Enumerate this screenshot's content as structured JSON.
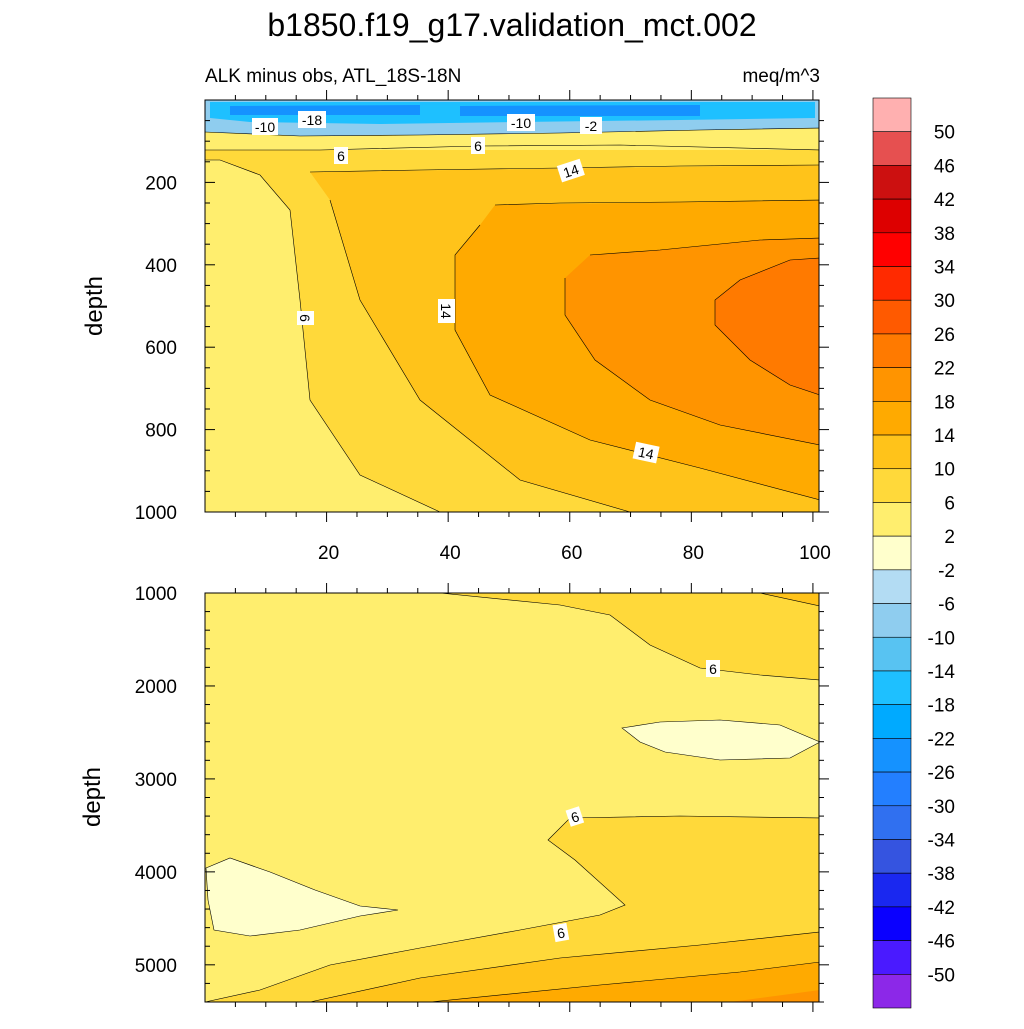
{
  "chart_data": {
    "type": "contour",
    "title": "b1850.f19_g17.validation_mct.002",
    "subtitle_left": "ALK minus obs, ATL_18S-18N",
    "subtitle_right": "meq/m^3",
    "panels": [
      {
        "name": "upper",
        "ylabel": "depth",
        "xlim": [
          0,
          101
        ],
        "ylim": [
          1000,
          0
        ],
        "xticks": [
          20,
          40,
          60,
          80,
          100
        ],
        "yticks": [
          200,
          400,
          600,
          800,
          1000
        ],
        "contour_labels": [
          "-10",
          "-18",
          "-10",
          "-2",
          "6",
          "6",
          "14",
          "6",
          "14",
          "14"
        ],
        "regions": [
          {
            "level": "-10 to -18",
            "description": "thin negative layer at surface, depth 0-50"
          },
          {
            "level": "2 to 6",
            "description": "western portion, x < 20"
          },
          {
            "level": "6 to 10",
            "description": "band x 20-35"
          },
          {
            "level": "10 to 14",
            "description": "band x 30-60"
          },
          {
            "level": "14 to 18",
            "description": "central region"
          },
          {
            "level": "18 to 22",
            "description": "eastern core, depth 350-850"
          },
          {
            "level": "22 to 26",
            "description": "maximum core near x 90, depth 500"
          }
        ]
      },
      {
        "name": "lower",
        "ylabel": "depth",
        "xlim": [
          0,
          101
        ],
        "ylim": [
          5400,
          1000
        ],
        "yticks": [
          1000,
          2000,
          3000,
          4000,
          5000
        ],
        "contour_labels": [
          "6",
          "6",
          "6"
        ],
        "regions": [
          {
            "level": "2 to 6",
            "description": "most of the domain"
          },
          {
            "level": "-2 to 2",
            "description": "two small pockets near depth 2500 east and 4200 west"
          },
          {
            "level": "6 to 10",
            "description": "east side 1000-2000 and 3400-4500"
          },
          {
            "level": "10 to 18",
            "description": "deep east near bottom"
          }
        ]
      }
    ],
    "colorbar": {
      "labels": [
        "50",
        "46",
        "42",
        "38",
        "34",
        "30",
        "26",
        "22",
        "18",
        "14",
        "10",
        "6",
        "2",
        "-2",
        "-6",
        "-10",
        "-14",
        "-18",
        "-22",
        "-26",
        "-30",
        "-34",
        "-38",
        "-42",
        "-46",
        "-50"
      ],
      "colors": [
        "#FFB0B0",
        "#E65050",
        "#CC1010",
        "#DD0000",
        "#FF0000",
        "#FF2A00",
        "#FF5A00",
        "#FF7A00",
        "#FF9400",
        "#FFAA00",
        "#FFC31A",
        "#FFD93A",
        "#FFEE6E",
        "#FFFFCC",
        "#B3DCF3",
        "#8FCDEF",
        "#58C3F2",
        "#1EC0FF",
        "#00AAFF",
        "#1592FF",
        "#237FFF",
        "#3070F0",
        "#3554E0",
        "#1A28F0",
        "#0A00FF",
        "#4A1AFF",
        "#8C28E8"
      ]
    }
  }
}
